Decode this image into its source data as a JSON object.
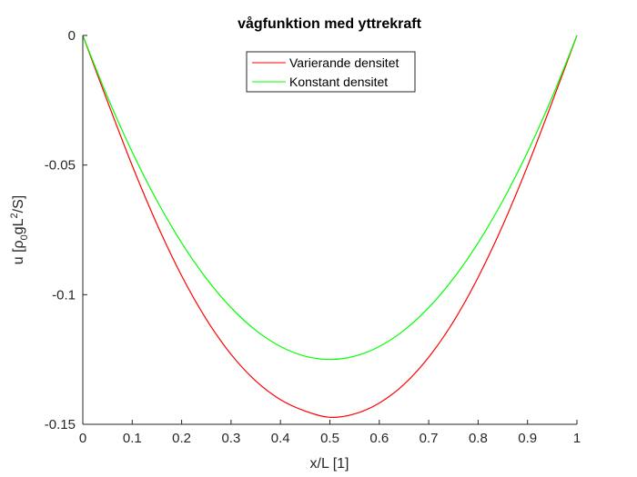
{
  "chart_data": {
    "type": "line",
    "title": "vågfunktion med yttrekraft",
    "xlabel": "x/L [1]",
    "ylabel": {
      "prefix": "u [ρ",
      "sub": "0",
      "mid": "gL",
      "sup": "2",
      "suffix": "/S]"
    },
    "xlim": [
      0,
      1
    ],
    "ylim": [
      -0.15,
      0
    ],
    "xticks": [
      "0",
      "0.1",
      "0.2",
      "0.3",
      "0.4",
      "0.5",
      "0.6",
      "0.7",
      "0.8",
      "0.9",
      "1"
    ],
    "yticks": [
      "-0.15",
      "-0.1",
      "-0.05",
      "0"
    ],
    "grid": false,
    "legend_position": "top-center",
    "x": [
      0,
      0.05,
      0.1,
      0.15,
      0.2,
      0.25,
      0.3,
      0.35,
      0.4,
      0.45,
      0.5,
      0.55,
      0.6,
      0.65,
      0.7,
      0.75,
      0.8,
      0.85,
      0.9,
      0.95,
      1
    ],
    "series": [
      {
        "name": "Varierande densitet",
        "color": "#ff0000",
        "values": [
          0,
          -0.0255,
          -0.0502,
          -0.0728,
          -0.0927,
          -0.1095,
          -0.123,
          -0.1333,
          -0.1405,
          -0.1449,
          -0.1473,
          -0.146,
          -0.1418,
          -0.1346,
          -0.1241,
          -0.1104,
          -0.0933,
          -0.0732,
          -0.0504,
          -0.0256,
          0
        ]
      },
      {
        "name": "Konstant densitet",
        "color": "#00ff00",
        "values": [
          0,
          -0.02375,
          -0.045,
          -0.06375,
          -0.08,
          -0.09375,
          -0.105,
          -0.11375,
          -0.12,
          -0.12375,
          -0.125,
          -0.12375,
          -0.12,
          -0.11375,
          -0.105,
          -0.09375,
          -0.08,
          -0.06375,
          -0.045,
          -0.02375,
          0
        ]
      }
    ]
  }
}
